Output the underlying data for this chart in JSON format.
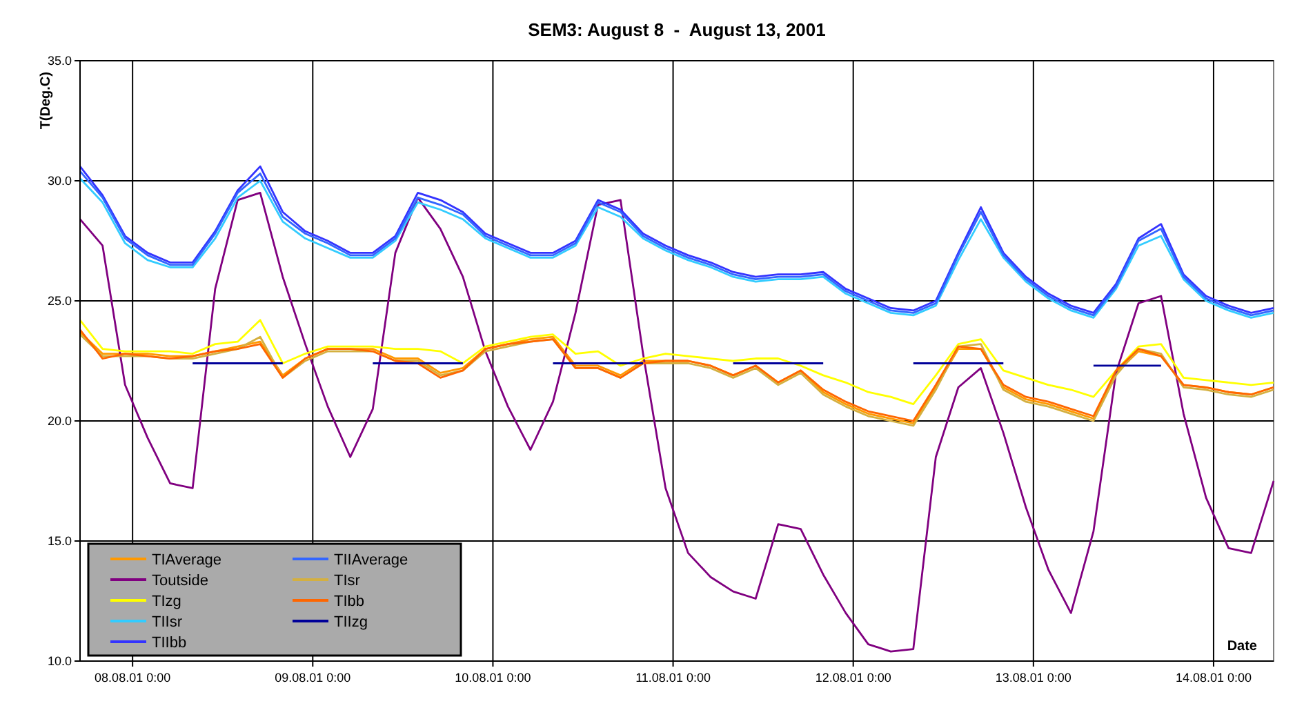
{
  "chart_data": {
    "type": "line",
    "title": "SEM3: August 8  -  August 13, 2001",
    "xlabel": "Date",
    "ylabel": "T(Deg.C)",
    "x": [
      "2001-08-07T17:00",
      "2001-08-07T20:00",
      "2001-08-07T23:00",
      "2001-08-08T02:00",
      "2001-08-08T05:00",
      "2001-08-08T08:00",
      "2001-08-08T11:00",
      "2001-08-08T14:00",
      "2001-08-08T17:00",
      "2001-08-08T20:00",
      "2001-08-08T23:00",
      "2001-08-09T02:00",
      "2001-08-09T05:00",
      "2001-08-09T08:00",
      "2001-08-09T11:00",
      "2001-08-09T14:00",
      "2001-08-09T17:00",
      "2001-08-09T20:00",
      "2001-08-09T23:00",
      "2001-08-10T02:00",
      "2001-08-10T05:00",
      "2001-08-10T08:00",
      "2001-08-10T11:00",
      "2001-08-10T14:00",
      "2001-08-10T17:00",
      "2001-08-10T20:00",
      "2001-08-10T23:00",
      "2001-08-11T02:00",
      "2001-08-11T05:00",
      "2001-08-11T08:00",
      "2001-08-11T11:00",
      "2001-08-11T14:00",
      "2001-08-11T17:00",
      "2001-08-11T20:00",
      "2001-08-11T23:00",
      "2001-08-12T02:00",
      "2001-08-12T05:00",
      "2001-08-12T08:00",
      "2001-08-12T11:00",
      "2001-08-12T14:00",
      "2001-08-12T17:00",
      "2001-08-12T20:00",
      "2001-08-12T23:00",
      "2001-08-13T02:00",
      "2001-08-13T05:00",
      "2001-08-13T08:00",
      "2001-08-13T11:00",
      "2001-08-13T14:00",
      "2001-08-13T17:00",
      "2001-08-13T20:00",
      "2001-08-13T23:00",
      "2001-08-14T02:00",
      "2001-08-14T05:00",
      "2001-08-14T08:00"
    ],
    "series": [
      {
        "name": "TIAverage",
        "color": "#ff9900",
        "values": [
          23.7,
          22.8,
          22.8,
          22.8,
          22.7,
          22.7,
          22.9,
          23.1,
          23.3,
          21.9,
          22.6,
          23.0,
          23.0,
          23.0,
          22.6,
          22.6,
          22.0,
          22.2,
          23.0,
          23.2,
          23.4,
          23.5,
          22.3,
          22.3,
          21.9,
          22.5,
          22.5,
          22.5,
          22.3,
          21.9,
          22.3,
          21.6,
          22.1,
          21.2,
          20.7,
          20.3,
          20.1,
          19.9,
          21.4,
          23.0,
          23.0,
          21.4,
          20.9,
          20.7,
          20.4,
          20.1,
          22.0,
          22.9,
          22.7,
          21.5,
          21.4,
          21.2,
          21.1,
          21.4
        ]
      },
      {
        "name": "Toutside",
        "color": "#800080",
        "values": [
          28.4,
          27.3,
          21.5,
          19.3,
          17.4,
          17.2,
          25.5,
          29.2,
          29.5,
          26.0,
          23.2,
          20.6,
          18.5,
          20.5,
          27.0,
          29.3,
          28.0,
          26.0,
          22.9,
          20.6,
          18.8,
          20.8,
          24.5,
          29.0,
          29.2,
          22.8,
          17.2,
          14.5,
          13.5,
          12.9,
          12.6,
          15.7,
          15.5,
          13.6,
          12.0,
          10.7,
          10.4,
          10.5,
          18.5,
          21.4,
          22.2,
          19.5,
          16.4,
          13.8,
          12.0,
          15.4,
          22.0,
          24.9,
          25.2,
          20.3,
          16.8,
          14.7,
          14.5,
          17.5
        ]
      },
      {
        "name": "TIzg",
        "color": "#ffff00",
        "values": [
          24.2,
          23.0,
          22.9,
          22.9,
          22.9,
          22.8,
          23.2,
          23.3,
          24.2,
          22.4,
          22.8,
          23.1,
          23.1,
          23.1,
          23.0,
          23.0,
          22.9,
          22.4,
          23.1,
          23.3,
          23.5,
          23.6,
          22.8,
          22.9,
          22.3,
          22.6,
          22.8,
          22.7,
          22.6,
          22.5,
          22.6,
          22.6,
          22.3,
          21.9,
          21.6,
          21.2,
          21.0,
          20.7,
          21.9,
          23.2,
          23.4,
          22.1,
          21.8,
          21.5,
          21.3,
          21.0,
          22.1,
          23.1,
          23.2,
          21.8,
          21.7,
          21.6,
          21.5,
          21.6
        ]
      },
      {
        "name": "TIIsr",
        "color": "#33ccff",
        "values": [
          30.1,
          29.1,
          27.4,
          26.7,
          26.4,
          26.4,
          27.6,
          29.3,
          30.0,
          28.3,
          27.6,
          27.2,
          26.8,
          26.8,
          27.5,
          29.1,
          28.8,
          28.4,
          27.6,
          27.2,
          26.8,
          26.8,
          27.3,
          28.9,
          28.5,
          27.6,
          27.1,
          26.7,
          26.4,
          26.0,
          25.8,
          25.9,
          25.9,
          26.0,
          25.3,
          24.9,
          24.5,
          24.4,
          24.8,
          26.7,
          28.4,
          26.8,
          25.8,
          25.1,
          24.6,
          24.3,
          25.5,
          27.3,
          27.7,
          25.9,
          25.0,
          24.6,
          24.3,
          24.5
        ]
      },
      {
        "name": "TIIbb",
        "color": "#3333ff",
        "values": [
          30.6,
          29.4,
          27.7,
          27.0,
          26.6,
          26.6,
          27.9,
          29.6,
          30.6,
          28.7,
          27.9,
          27.5,
          27.0,
          27.0,
          27.7,
          29.5,
          29.2,
          28.7,
          27.8,
          27.4,
          27.0,
          27.0,
          27.5,
          29.2,
          28.8,
          27.8,
          27.3,
          26.9,
          26.6,
          26.2,
          26.0,
          26.1,
          26.1,
          26.2,
          25.5,
          25.1,
          24.7,
          24.6,
          25.0,
          27.0,
          28.9,
          27.0,
          26.0,
          25.3,
          24.8,
          24.5,
          25.7,
          27.6,
          28.2,
          26.1,
          25.2,
          24.8,
          24.5,
          24.7
        ]
      },
      {
        "name": "TIIAverage",
        "color": "#3366ff",
        "values": [
          30.4,
          29.3,
          27.6,
          26.9,
          26.5,
          26.5,
          27.8,
          29.5,
          30.3,
          28.5,
          27.8,
          27.4,
          26.9,
          26.9,
          27.6,
          29.3,
          29.0,
          28.6,
          27.7,
          27.3,
          26.9,
          26.9,
          27.4,
          29.1,
          28.7,
          27.7,
          27.2,
          26.8,
          26.5,
          26.1,
          25.9,
          26.0,
          26.0,
          26.1,
          25.4,
          25.0,
          24.6,
          24.5,
          24.9,
          26.9,
          28.7,
          26.9,
          25.9,
          25.2,
          24.7,
          24.4,
          25.6,
          27.5,
          28.0,
          26.0,
          25.1,
          24.7,
          24.4,
          24.6
        ]
      },
      {
        "name": "TIsr",
        "color": "#d4b040",
        "values": [
          23.6,
          22.7,
          22.7,
          22.7,
          22.6,
          22.6,
          22.8,
          23.0,
          23.5,
          21.8,
          22.5,
          22.9,
          22.9,
          22.9,
          22.5,
          22.5,
          21.9,
          22.1,
          22.9,
          23.1,
          23.3,
          23.4,
          22.2,
          22.2,
          21.8,
          22.4,
          22.4,
          22.4,
          22.2,
          21.8,
          22.2,
          21.5,
          22.0,
          21.1,
          20.6,
          20.2,
          20.0,
          19.8,
          21.3,
          23.1,
          23.2,
          21.3,
          20.8,
          20.6,
          20.3,
          20.0,
          21.9,
          23.0,
          22.8,
          21.4,
          21.3,
          21.1,
          21.0,
          21.3
        ]
      },
      {
        "name": "TIbb",
        "color": "#ff6600",
        "values": [
          23.8,
          22.6,
          22.8,
          22.7,
          22.6,
          22.7,
          22.9,
          23.0,
          23.2,
          21.8,
          22.6,
          23.0,
          23.0,
          22.9,
          22.5,
          22.4,
          21.8,
          22.1,
          23.0,
          23.2,
          23.3,
          23.4,
          22.2,
          22.2,
          21.8,
          22.4,
          22.5,
          22.5,
          22.3,
          21.9,
          22.3,
          21.6,
          22.1,
          21.3,
          20.8,
          20.4,
          20.2,
          20.0,
          21.5,
          23.1,
          23.0,
          21.5,
          21.0,
          20.8,
          20.5,
          20.2,
          22.1,
          23.0,
          22.7,
          21.5,
          21.4,
          21.2,
          21.1,
          21.4
        ]
      },
      {
        "name": "TIIzg",
        "color": "#000099",
        "values": [
          null,
          null,
          null,
          null,
          null,
          22.4,
          22.4,
          22.4,
          22.4,
          22.4,
          null,
          null,
          null,
          22.4,
          22.4,
          22.4,
          22.4,
          22.4,
          null,
          null,
          null,
          22.4,
          22.4,
          22.4,
          22.4,
          22.4,
          null,
          null,
          null,
          22.4,
          22.4,
          22.4,
          22.4,
          22.4,
          null,
          null,
          null,
          22.4,
          22.4,
          22.4,
          22.4,
          22.4,
          null,
          null,
          null,
          22.3,
          22.3,
          22.3,
          22.3,
          null,
          null,
          null,
          null,
          null
        ]
      }
    ],
    "xlim": [
      "2001-08-07T17:00",
      "2001-08-14T08:00"
    ],
    "xticks": [
      {
        "value": "2001-08-08T00:00",
        "label": "08.08.01 0:00"
      },
      {
        "value": "2001-08-09T00:00",
        "label": "09.08.01 0:00"
      },
      {
        "value": "2001-08-10T00:00",
        "label": "10.08.01 0:00"
      },
      {
        "value": "2001-08-11T00:00",
        "label": "11.08.01 0:00"
      },
      {
        "value": "2001-08-12T00:00",
        "label": "12.08.01 0:00"
      },
      {
        "value": "2001-08-13T00:00",
        "label": "13.08.01 0:00"
      },
      {
        "value": "2001-08-14T00:00",
        "label": "14.08.01 0:00"
      }
    ],
    "ylim": [
      10,
      35
    ],
    "yticks": [
      {
        "value": 10,
        "label": "10.0"
      },
      {
        "value": 15,
        "label": "15.0"
      },
      {
        "value": 20,
        "label": "20.0"
      },
      {
        "value": 25,
        "label": "25.0"
      },
      {
        "value": 30,
        "label": "30.0"
      },
      {
        "value": 35,
        "label": "35.0"
      }
    ],
    "grid": true,
    "legend": "bottom left",
    "marker": "none",
    "line_style": "solid"
  }
}
